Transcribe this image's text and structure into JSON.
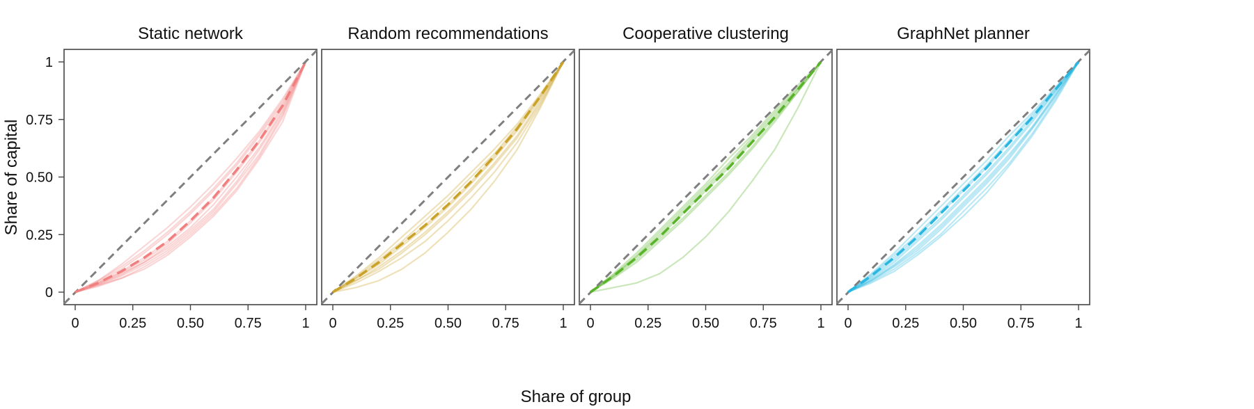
{
  "chart_data": {
    "type": "line",
    "xlabel": "Share of group",
    "ylabel": "Share of capital",
    "xlim": [
      0,
      1
    ],
    "ylim": [
      0,
      1
    ],
    "x_ticks": [
      "0",
      "0.25",
      "0.50",
      "0.75",
      "1"
    ],
    "y_ticks": [
      "0",
      "0.25",
      "0.50",
      "0.75",
      "1"
    ],
    "x": [
      0,
      0.1,
      0.2,
      0.3,
      0.4,
      0.5,
      0.6,
      0.7,
      0.8,
      0.9,
      1
    ],
    "reference_line": {
      "style": "dashed",
      "color": "#7f7f7f",
      "points": [
        [
          0,
          0
        ],
        [
          1,
          1
        ]
      ]
    },
    "panels": [
      {
        "title": "Static network",
        "color": "#f08080",
        "mean": [
          0,
          0.04,
          0.09,
          0.15,
          0.22,
          0.31,
          0.41,
          0.53,
          0.66,
          0.81,
          1
        ],
        "runs": [
          [
            0,
            0.05,
            0.12,
            0.2,
            0.28,
            0.37,
            0.47,
            0.58,
            0.7,
            0.84,
            1
          ],
          [
            0,
            0.045,
            0.1,
            0.17,
            0.25,
            0.34,
            0.44,
            0.55,
            0.68,
            0.82,
            1
          ],
          [
            0,
            0.04,
            0.09,
            0.15,
            0.22,
            0.31,
            0.41,
            0.53,
            0.66,
            0.81,
            1
          ],
          [
            0,
            0.035,
            0.08,
            0.13,
            0.2,
            0.28,
            0.38,
            0.5,
            0.63,
            0.79,
            1
          ],
          [
            0,
            0.03,
            0.07,
            0.12,
            0.18,
            0.26,
            0.35,
            0.47,
            0.6,
            0.77,
            1
          ],
          [
            0,
            0.03,
            0.06,
            0.11,
            0.17,
            0.25,
            0.34,
            0.45,
            0.59,
            0.76,
            1
          ],
          [
            0,
            0.025,
            0.06,
            0.1,
            0.16,
            0.24,
            0.33,
            0.44,
            0.58,
            0.74,
            1
          ],
          [
            0,
            0.05,
            0.11,
            0.18,
            0.26,
            0.35,
            0.45,
            0.56,
            0.69,
            0.83,
            1
          ],
          [
            0,
            0.04,
            0.085,
            0.14,
            0.21,
            0.3,
            0.4,
            0.52,
            0.65,
            0.8,
            1
          ],
          [
            0,
            0.035,
            0.075,
            0.13,
            0.19,
            0.27,
            0.36,
            0.48,
            0.62,
            0.78,
            1
          ]
        ]
      },
      {
        "title": "Random recommendations",
        "color": "#c9a227",
        "mean": [
          0,
          0.06,
          0.13,
          0.21,
          0.29,
          0.38,
          0.48,
          0.59,
          0.71,
          0.85,
          1
        ],
        "runs": [
          [
            0,
            0.07,
            0.15,
            0.24,
            0.33,
            0.42,
            0.52,
            0.62,
            0.73,
            0.86,
            1
          ],
          [
            0,
            0.065,
            0.14,
            0.22,
            0.31,
            0.4,
            0.5,
            0.6,
            0.72,
            0.85,
            1
          ],
          [
            0,
            0.06,
            0.13,
            0.21,
            0.29,
            0.38,
            0.48,
            0.59,
            0.71,
            0.85,
            1
          ],
          [
            0,
            0.05,
            0.11,
            0.18,
            0.26,
            0.35,
            0.45,
            0.56,
            0.68,
            0.83,
            1
          ],
          [
            0,
            0.04,
            0.09,
            0.15,
            0.22,
            0.31,
            0.41,
            0.52,
            0.65,
            0.81,
            1
          ],
          [
            0,
            0.02,
            0.05,
            0.1,
            0.17,
            0.26,
            0.36,
            0.48,
            0.62,
            0.8,
            1
          ],
          [
            0,
            0.05,
            0.1,
            0.17,
            0.25,
            0.34,
            0.44,
            0.55,
            0.67,
            0.82,
            1
          ],
          [
            0,
            0.06,
            0.12,
            0.2,
            0.28,
            0.37,
            0.47,
            0.58,
            0.7,
            0.84,
            1
          ]
        ]
      },
      {
        "title": "Cooperative clustering",
        "color": "#5ab42a",
        "mean": [
          0,
          0.07,
          0.15,
          0.24,
          0.34,
          0.44,
          0.54,
          0.65,
          0.76,
          0.88,
          1
        ],
        "runs": [
          [
            0,
            0.08,
            0.17,
            0.27,
            0.37,
            0.47,
            0.58,
            0.68,
            0.79,
            0.9,
            1
          ],
          [
            0,
            0.075,
            0.16,
            0.26,
            0.36,
            0.46,
            0.56,
            0.67,
            0.78,
            0.89,
            1
          ],
          [
            0,
            0.07,
            0.15,
            0.24,
            0.34,
            0.44,
            0.54,
            0.65,
            0.76,
            0.88,
            1
          ],
          [
            0,
            0.065,
            0.14,
            0.23,
            0.32,
            0.42,
            0.52,
            0.63,
            0.75,
            0.87,
            1
          ],
          [
            0,
            0.06,
            0.13,
            0.22,
            0.31,
            0.41,
            0.51,
            0.62,
            0.74,
            0.87,
            1
          ],
          [
            0,
            0.07,
            0.155,
            0.25,
            0.35,
            0.45,
            0.55,
            0.66,
            0.77,
            0.885,
            1
          ],
          [
            0,
            0.02,
            0.04,
            0.08,
            0.15,
            0.24,
            0.35,
            0.48,
            0.62,
            0.8,
            1
          ]
        ]
      },
      {
        "title": "GraphNet planner",
        "color": "#29b6e0",
        "mean": [
          0,
          0.07,
          0.15,
          0.24,
          0.34,
          0.44,
          0.54,
          0.65,
          0.76,
          0.88,
          1
        ],
        "runs": [
          [
            0,
            0.08,
            0.17,
            0.27,
            0.37,
            0.47,
            0.57,
            0.68,
            0.78,
            0.89,
            1
          ],
          [
            0,
            0.075,
            0.16,
            0.25,
            0.35,
            0.45,
            0.55,
            0.66,
            0.77,
            0.885,
            1
          ],
          [
            0,
            0.07,
            0.15,
            0.24,
            0.34,
            0.44,
            0.54,
            0.65,
            0.76,
            0.88,
            1
          ],
          [
            0,
            0.06,
            0.13,
            0.22,
            0.31,
            0.41,
            0.51,
            0.62,
            0.74,
            0.87,
            1
          ],
          [
            0,
            0.055,
            0.12,
            0.2,
            0.29,
            0.39,
            0.49,
            0.6,
            0.72,
            0.86,
            1
          ],
          [
            0,
            0.05,
            0.11,
            0.18,
            0.27,
            0.37,
            0.47,
            0.58,
            0.71,
            0.85,
            1
          ],
          [
            0,
            0.045,
            0.1,
            0.17,
            0.25,
            0.35,
            0.45,
            0.56,
            0.69,
            0.84,
            1
          ],
          [
            0,
            0.04,
            0.09,
            0.16,
            0.24,
            0.33,
            0.43,
            0.55,
            0.68,
            0.83,
            1
          ],
          [
            0,
            0.065,
            0.14,
            0.23,
            0.32,
            0.42,
            0.52,
            0.63,
            0.75,
            0.875,
            1
          ],
          [
            0,
            0.05,
            0.115,
            0.19,
            0.28,
            0.38,
            0.48,
            0.59,
            0.715,
            0.855,
            1
          ]
        ]
      }
    ]
  }
}
